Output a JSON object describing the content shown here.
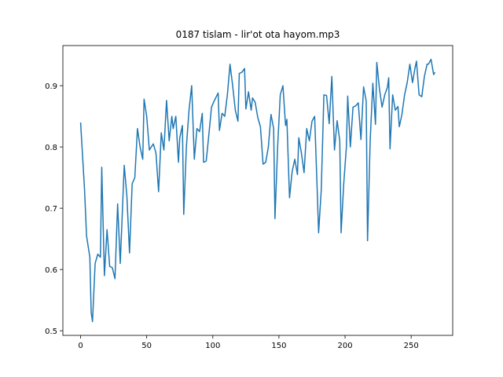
{
  "chart_data": {
    "type": "line",
    "title": "0187 tislam - lir'ot ota hayom.mp3",
    "x": [
      0,
      3,
      4.5,
      7,
      8,
      9,
      11,
      13,
      15,
      16,
      18,
      20,
      22,
      24,
      26,
      28,
      30,
      33,
      35,
      37,
      39,
      41,
      43,
      45,
      47,
      48,
      50,
      52,
      55,
      57,
      59,
      61,
      63,
      65,
      67,
      69,
      70,
      72,
      74,
      75,
      77,
      78,
      80,
      82,
      84,
      86,
      88,
      90,
      92,
      93,
      95,
      97,
      99,
      101,
      104,
      105,
      107,
      109,
      111,
      113,
      115,
      117,
      119,
      120,
      122,
      124,
      125,
      127,
      129,
      130,
      132,
      134,
      136,
      138,
      140,
      142,
      144,
      146,
      147,
      149,
      151,
      153,
      155,
      156,
      158,
      160,
      162,
      164,
      165,
      167,
      169,
      171,
      173,
      175,
      177,
      179,
      180,
      182,
      184,
      186,
      188,
      190,
      192,
      194,
      196,
      197,
      199,
      201,
      202,
      204,
      206,
      208,
      210,
      212,
      214,
      216,
      217,
      219,
      221,
      223,
      224,
      226,
      228,
      230,
      232,
      233,
      234,
      236,
      238,
      240,
      241,
      243,
      245,
      247,
      249,
      251,
      253,
      254,
      256,
      258,
      260,
      262,
      263,
      265,
      267,
      268
    ],
    "series": [
      {
        "color": "#1f77b4",
        "values": [
          0.84,
          0.73,
          0.655,
          0.62,
          0.53,
          0.515,
          0.61,
          0.625,
          0.62,
          0.767,
          0.59,
          0.665,
          0.605,
          0.603,
          0.585,
          0.707,
          0.61,
          0.77,
          0.72,
          0.627,
          0.74,
          0.75,
          0.83,
          0.8,
          0.78,
          0.878,
          0.85,
          0.795,
          0.805,
          0.79,
          0.727,
          0.823,
          0.795,
          0.876,
          0.81,
          0.85,
          0.83,
          0.85,
          0.775,
          0.815,
          0.835,
          0.69,
          0.8,
          0.86,
          0.9,
          0.78,
          0.83,
          0.825,
          0.855,
          0.775,
          0.777,
          0.82,
          0.865,
          0.875,
          0.888,
          0.827,
          0.855,
          0.85,
          0.885,
          0.935,
          0.9,
          0.86,
          0.842,
          0.92,
          0.922,
          0.928,
          0.862,
          0.89,
          0.86,
          0.88,
          0.873,
          0.848,
          0.833,
          0.772,
          0.775,
          0.8,
          0.853,
          0.83,
          0.683,
          0.8,
          0.885,
          0.9,
          0.835,
          0.845,
          0.717,
          0.76,
          0.78,
          0.755,
          0.815,
          0.79,
          0.758,
          0.83,
          0.81,
          0.842,
          0.85,
          0.725,
          0.66,
          0.73,
          0.885,
          0.884,
          0.838,
          0.915,
          0.795,
          0.843,
          0.81,
          0.66,
          0.74,
          0.8,
          0.883,
          0.8,
          0.865,
          0.867,
          0.872,
          0.812,
          0.898,
          0.875,
          0.647,
          0.81,
          0.904,
          0.837,
          0.938,
          0.895,
          0.865,
          0.885,
          0.897,
          0.913,
          0.797,
          0.885,
          0.86,
          0.866,
          0.833,
          0.853,
          0.885,
          0.905,
          0.935,
          0.905,
          0.93,
          0.94,
          0.885,
          0.882,
          0.915,
          0.935,
          0.935,
          0.943,
          0.918,
          0.922
        ]
      }
    ],
    "xlim": [
      -13.4,
      281.4
    ],
    "ylim": [
      0.4925,
      0.9655
    ],
    "xticks": [
      0,
      50,
      100,
      150,
      200,
      250
    ],
    "yticks": [
      0.5,
      0.6,
      0.7,
      0.8,
      0.9
    ]
  }
}
